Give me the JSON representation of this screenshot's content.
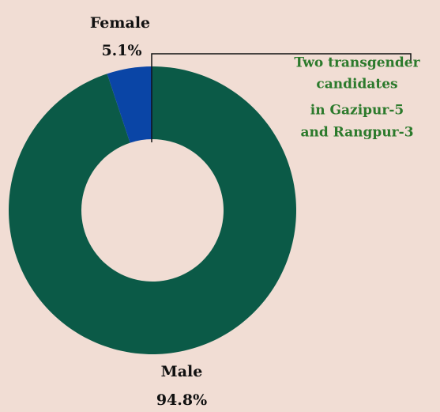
{
  "chart_data": {
    "type": "donut",
    "categories": [
      "Male",
      "Female"
    ],
    "values": [
      94.8,
      5.1
    ],
    "value_labels": [
      "94.8%",
      "5.1%"
    ],
    "colors": [
      "#0b5a47",
      "#0a45a6"
    ],
    "annotation": [
      "Two transgender",
      "candidates",
      "in Gazipur-5",
      "and Rangpur-3"
    ]
  }
}
